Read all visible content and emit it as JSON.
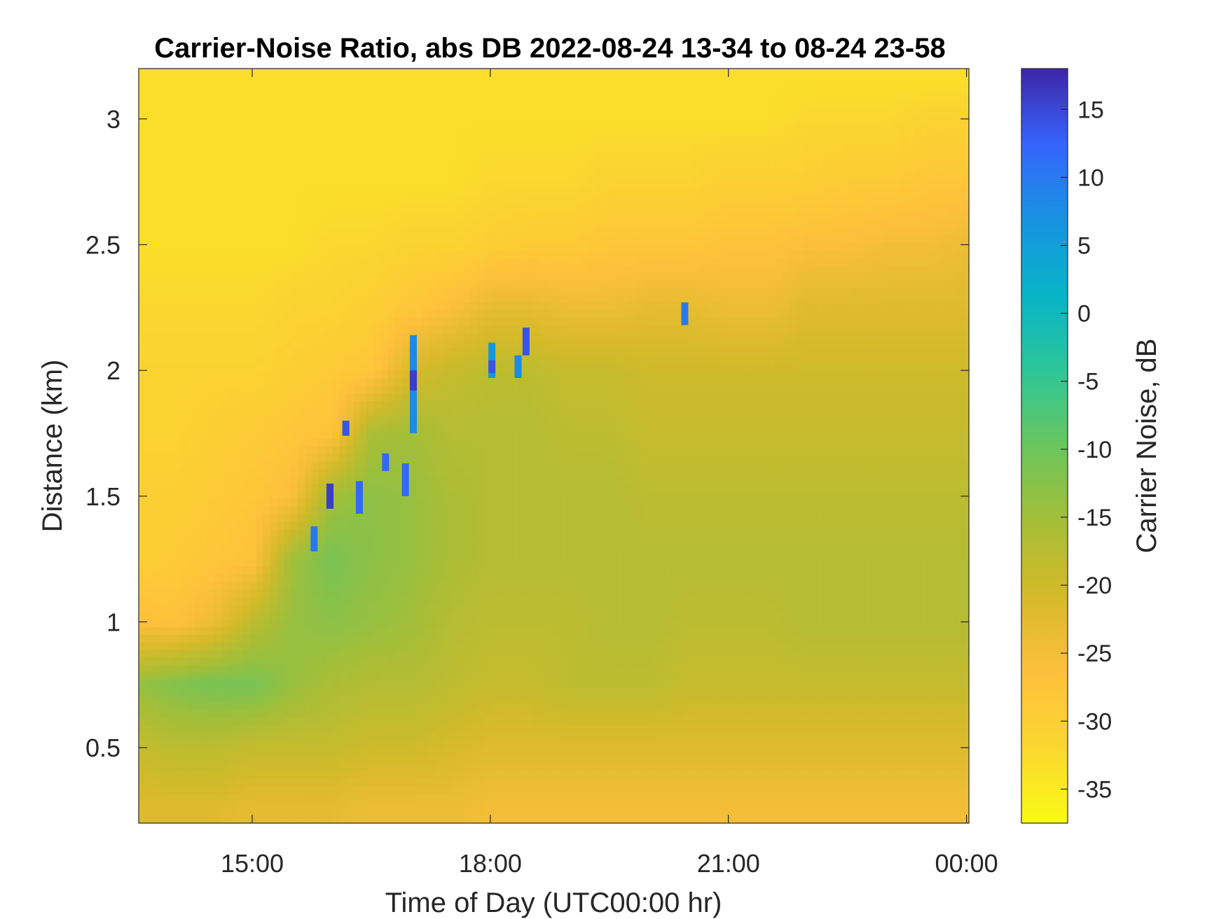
{
  "chart_data": {
    "type": "heatmap",
    "title": "Carrier-Noise Ratio, abs DB 2022-08-24 13-34 to 08-24 23-58",
    "xlabel": "Time of Day (UTC00:00 hr)",
    "ylabel": "Distance (km)",
    "colorbar_label": "Carrier Noise, dB",
    "x_unit": "hours (UTC)",
    "xlim": [
      13.57,
      24.03
    ],
    "ylim": [
      0.2,
      3.2
    ],
    "x_ticks": [
      {
        "value": 15,
        "label": "15:00"
      },
      {
        "value": 18,
        "label": "18:00"
      },
      {
        "value": 21,
        "label": "21:00"
      },
      {
        "value": 24,
        "label": "00:00"
      }
    ],
    "y_ticks": [
      {
        "value": 0.5,
        "label": "0.5"
      },
      {
        "value": 1,
        "label": "1"
      },
      {
        "value": 1.5,
        "label": "1.5"
      },
      {
        "value": 2,
        "label": "2"
      },
      {
        "value": 2.5,
        "label": "2.5"
      },
      {
        "value": 3,
        "label": "3"
      }
    ],
    "clim": [
      -37.5,
      18
    ],
    "colorbar_ticks": [
      15,
      10,
      5,
      0,
      -5,
      -10,
      -15,
      -20,
      -25,
      -30,
      -35
    ],
    "colormap": "parula (reversed: yellow = low, dark blue = high)",
    "grid": false,
    "x_hours": [
      13.57,
      14.0,
      14.5,
      15.0,
      15.5,
      16.0,
      16.5,
      17.0,
      17.5,
      18.0,
      18.5,
      19.0,
      19.5,
      20.0,
      20.5,
      21.0,
      21.5,
      22.0,
      22.5,
      23.0,
      23.5,
      24.0
    ],
    "y_km": [
      0.25,
      0.5,
      0.75,
      1.0,
      1.25,
      1.5,
      1.75,
      2.0,
      2.25,
      2.5,
      2.75,
      3.0,
      3.15
    ],
    "values_db": [
      [
        -22,
        -22,
        -22,
        -23,
        -23,
        -23,
        -24,
        -24,
        -24,
        -25,
        -25,
        -25,
        -25,
        -25,
        -25,
        -25,
        -25,
        -25,
        -25,
        -25,
        -25,
        -25
      ],
      [
        -19,
        -18,
        -18,
        -19,
        -19,
        -19,
        -20,
        -20,
        -21,
        -22,
        -22,
        -22,
        -22,
        -22,
        -22,
        -22,
        -22,
        -22,
        -22,
        -22,
        -22,
        -22
      ],
      [
        -14,
        -12,
        -11,
        -11,
        -14,
        -16,
        -17,
        -17,
        -18,
        -19,
        -19,
        -18,
        -18,
        -18,
        -19,
        -19,
        -19,
        -19,
        -19,
        -19,
        -19,
        -19
      ],
      [
        -26,
        -27,
        -24,
        -18,
        -14,
        -13,
        -14,
        -15,
        -17,
        -18,
        -18,
        -18,
        -17,
        -17,
        -18,
        -18,
        -18,
        -17,
        -17,
        -17,
        -17,
        -17
      ],
      [
        -30,
        -29,
        -28,
        -27,
        -15,
        -11,
        -13,
        -14,
        -16,
        -17,
        -17,
        -17,
        -17,
        -17,
        -17,
        -17,
        -17,
        -17,
        -17,
        -17,
        -17,
        -17
      ],
      [
        -30,
        -30,
        -29,
        -28,
        -26,
        -15,
        -13,
        -14,
        -16,
        -17,
        -17,
        -17,
        -17,
        -18,
        -18,
        -18,
        -18,
        -18,
        -18,
        -18,
        -18,
        -18
      ],
      [
        -31,
        -31,
        -30,
        -29,
        -28,
        -27,
        -16,
        -15,
        -17,
        -17,
        -17,
        -18,
        -18,
        -19,
        -19,
        -19,
        -19,
        -19,
        -19,
        -19,
        -19,
        -19
      ],
      [
        -31,
        -31,
        -31,
        -31,
        -30,
        -29,
        -28,
        -21,
        -19,
        -18,
        -18,
        -19,
        -19,
        -20,
        -20,
        -20,
        -20,
        -20,
        -20,
        -20,
        -20,
        -20
      ],
      [
        -32,
        -32,
        -32,
        -32,
        -31,
        -31,
        -30,
        -28,
        -26,
        -23,
        -23,
        -24,
        -24,
        -23,
        -23,
        -24,
        -24,
        -22,
        -22,
        -22,
        -22,
        -22
      ],
      [
        -33,
        -33,
        -33,
        -33,
        -33,
        -32,
        -32,
        -31,
        -31,
        -30,
        -29,
        -29,
        -28,
        -28,
        -28,
        -27,
        -27,
        -26,
        -26,
        -25,
        -25,
        -24
      ],
      [
        -33,
        -33,
        -33,
        -33,
        -33,
        -33,
        -33,
        -33,
        -33,
        -32,
        -32,
        -32,
        -31,
        -31,
        -31,
        -30,
        -30,
        -30,
        -29,
        -29,
        -28,
        -28
      ],
      [
        -33,
        -33,
        -33,
        -33,
        -33,
        -33,
        -33,
        -33,
        -33,
        -33,
        -33,
        -33,
        -33,
        -33,
        -33,
        -33,
        -33,
        -32,
        -32,
        -32,
        -31,
        -31
      ],
      [
        -33,
        -33,
        -33,
        -33,
        -33,
        -33,
        -33,
        -33,
        -33,
        -33,
        -33,
        -33,
        -33,
        -33,
        -33,
        -33,
        -33,
        -33,
        -33,
        -33,
        -33,
        -33
      ]
    ],
    "high_snr_features": [
      {
        "x_hour": 15.78,
        "y_from_km": 1.28,
        "y_to_km": 1.38,
        "value_db": 10
      },
      {
        "x_hour": 15.98,
        "y_from_km": 1.45,
        "y_to_km": 1.55,
        "value_db": 16
      },
      {
        "x_hour": 16.18,
        "y_from_km": 1.74,
        "y_to_km": 1.8,
        "value_db": 14
      },
      {
        "x_hour": 16.35,
        "y_from_km": 1.43,
        "y_to_km": 1.56,
        "value_db": 12
      },
      {
        "x_hour": 16.68,
        "y_from_km": 1.6,
        "y_to_km": 1.67,
        "value_db": 12
      },
      {
        "x_hour": 16.93,
        "y_from_km": 1.5,
        "y_to_km": 1.63,
        "value_db": 12
      },
      {
        "x_hour": 17.03,
        "y_from_km": 1.75,
        "y_to_km": 2.14,
        "value_db": 8
      },
      {
        "x_hour": 17.03,
        "y_from_km": 1.92,
        "y_to_km": 2.0,
        "value_db": 16
      },
      {
        "x_hour": 18.02,
        "y_from_km": 1.97,
        "y_to_km": 2.11,
        "value_db": 6
      },
      {
        "x_hour": 18.02,
        "y_from_km": 1.99,
        "y_to_km": 2.04,
        "value_db": 14
      },
      {
        "x_hour": 18.35,
        "y_from_km": 1.97,
        "y_to_km": 2.06,
        "value_db": 8
      },
      {
        "x_hour": 18.45,
        "y_from_km": 2.06,
        "y_to_km": 2.17,
        "value_db": 14
      },
      {
        "x_hour": 20.45,
        "y_from_km": 2.18,
        "y_to_km": 2.27,
        "value_db": 10
      }
    ]
  }
}
